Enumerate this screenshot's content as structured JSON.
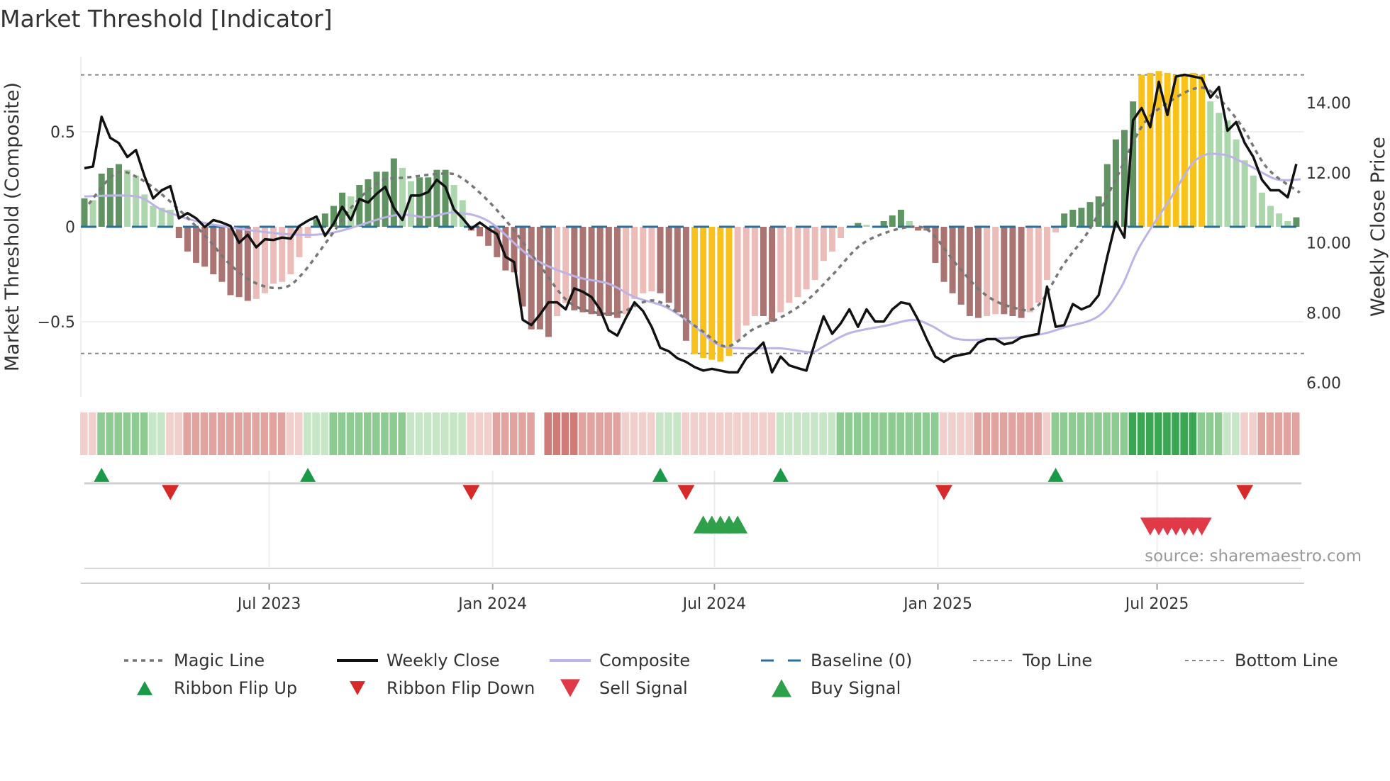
{
  "chart_data": {
    "type": "bar",
    "title": "Market Threshold [Indicator]",
    "ylabel": "Market Threshold (Composite)",
    "y2label": "Weekly Close Price",
    "source": "source: sharemaestro.com",
    "ylim": [
      -0.9,
      0.9
    ],
    "y2lim": [
      5.5,
      15.5
    ],
    "yticks": [
      {
        "v": 0.5,
        "label": "0.5"
      },
      {
        "v": 0,
        "label": "0"
      },
      {
        "v": -0.5,
        "label": "−0.5"
      }
    ],
    "y2ticks": [
      {
        "v": 14,
        "label": "14.00"
      },
      {
        "v": 12,
        "label": "12.00"
      },
      {
        "v": 10,
        "label": "10.00"
      },
      {
        "v": 8,
        "label": "8.00"
      },
      {
        "v": 6,
        "label": "6.00"
      }
    ],
    "xticks": [
      {
        "week": 21.5,
        "label": "Jul 2023"
      },
      {
        "week": 47.5,
        "label": "Jan 2024"
      },
      {
        "week": 73.3,
        "label": "Jul 2024"
      },
      {
        "week": 99.3,
        "label": "Jan 2025"
      },
      {
        "week": 124.8,
        "label": "Jul 2025"
      }
    ],
    "x_unit": "weeks since start (early Feb 2023)",
    "top_line": 0.8,
    "bottom_line": -0.667,
    "baseline": 0,
    "colors": {
      "pos_rising": "#5f9462",
      "pos_falling": "#acd6ab",
      "neg_falling": "#a97472",
      "neg_rising": "#ebbcb8",
      "extreme": "#f8c21a",
      "close": "#111111",
      "composite": "#bcb4e6",
      "magic": "#777777",
      "baseline": "#2a6f9b",
      "threshold": "#888888",
      "flip_up": "#1a9a48",
      "flip_down": "#d62a2a",
      "buy": "#2fa04a",
      "sell": "#e03a48"
    },
    "histogram": [
      0.15,
      0.14,
      0.28,
      0.31,
      0.33,
      0.3,
      0.27,
      0.17,
      0.11,
      0.1,
      0.09,
      -0.06,
      -0.13,
      -0.19,
      -0.21,
      -0.25,
      -0.29,
      -0.36,
      -0.37,
      -0.39,
      -0.38,
      -0.35,
      -0.3,
      -0.29,
      -0.25,
      -0.16,
      -0.06,
      0.04,
      0.07,
      0.11,
      0.18,
      0.16,
      0.22,
      0.25,
      0.29,
      0.29,
      0.36,
      0.31,
      0.24,
      0.26,
      0.26,
      0.3,
      0.3,
      0.22,
      0.14,
      -0.02,
      -0.05,
      -0.1,
      -0.16,
      -0.23,
      -0.24,
      -0.42,
      -0.54,
      -0.54,
      -0.58,
      -0.47,
      -0.4,
      -0.44,
      -0.45,
      -0.46,
      -0.47,
      -0.47,
      -0.48,
      -0.46,
      -0.38,
      -0.35,
      -0.34,
      -0.35,
      -0.4,
      -0.45,
      -0.6,
      -0.67,
      -0.69,
      -0.7,
      -0.71,
      -0.68,
      -0.6,
      -0.52,
      -0.47,
      -0.47,
      -0.5,
      -0.45,
      -0.4,
      -0.37,
      -0.33,
      -0.28,
      -0.18,
      -0.13,
      -0.06,
      0.0,
      0.02,
      0.01,
      0.0,
      0.03,
      0.06,
      0.09,
      0.03,
      -0.02,
      -0.02,
      -0.19,
      -0.29,
      -0.35,
      -0.41,
      -0.47,
      -0.48,
      -0.47,
      -0.46,
      -0.46,
      -0.47,
      -0.48,
      -0.45,
      -0.4,
      -0.28,
      -0.03,
      0.07,
      0.09,
      0.1,
      0.13,
      0.16,
      0.33,
      0.46,
      0.51,
      0.66,
      0.8,
      0.81,
      0.82,
      0.81,
      0.8,
      0.8,
      0.81,
      0.8,
      0.66,
      0.6,
      0.56,
      0.46,
      0.35,
      0.27,
      0.18,
      0.11,
      0.07,
      0.03,
      0.05
    ],
    "weekly_close": [
      12.13,
      12.18,
      13.6,
      13.0,
      12.85,
      12.45,
      12.65,
      11.9,
      11.27,
      11.5,
      11.62,
      10.7,
      10.85,
      10.7,
      10.45,
      10.65,
      10.58,
      10.48,
      10.0,
      10.23,
      9.87,
      10.1,
      10.08,
      10.15,
      10.12,
      10.48,
      10.63,
      10.75,
      10.2,
      10.55,
      11.03,
      10.65,
      11.25,
      11.15,
      11.4,
      11.6,
      11.0,
      10.65,
      11.35,
      11.35,
      11.45,
      11.8,
      11.6,
      10.95,
      10.7,
      10.4,
      10.58,
      10.4,
      10.25,
      9.6,
      9.45,
      7.8,
      7.65,
      7.95,
      8.3,
      8.3,
      8.1,
      8.7,
      8.6,
      8.45,
      8.1,
      7.5,
      7.35,
      7.85,
      8.3,
      8.05,
      7.6,
      7.0,
      6.9,
      6.7,
      6.6,
      6.45,
      6.35,
      6.4,
      6.35,
      6.3,
      6.3,
      6.7,
      6.9,
      7.15,
      6.3,
      6.75,
      6.5,
      6.42,
      6.35,
      7.15,
      7.9,
      7.4,
      7.7,
      8.1,
      7.6,
      8.1,
      7.75,
      7.75,
      8.1,
      8.3,
      8.25,
      7.8,
      7.25,
      6.75,
      6.6,
      6.75,
      6.8,
      6.85,
      7.15,
      7.25,
      7.25,
      7.1,
      7.15,
      7.3,
      7.35,
      7.4,
      8.75,
      7.6,
      7.65,
      8.25,
      8.1,
      8.2,
      8.5,
      9.6,
      10.6,
      10.15,
      13.5,
      13.85,
      13.3,
      14.6,
      13.65,
      14.75,
      14.8,
      14.75,
      14.7,
      14.15,
      14.45,
      13.2,
      13.45,
      12.85,
      12.45,
      11.8,
      11.5,
      11.5,
      11.3,
      12.25
    ],
    "composite": [
      [
        0,
        0.16
      ],
      [
        6,
        0.16
      ],
      [
        9,
        0.09
      ],
      [
        13,
        0.03
      ],
      [
        18,
        -0.01
      ],
      [
        24,
        -0.04
      ],
      [
        29,
        -0.03
      ],
      [
        36,
        0.06
      ],
      [
        40,
        0.05
      ],
      [
        43,
        0.075
      ],
      [
        47,
        0.03
      ],
      [
        52,
        -0.16
      ],
      [
        57,
        -0.26
      ],
      [
        61,
        -0.3
      ],
      [
        64,
        -0.37
      ],
      [
        67.5,
        -0.42
      ],
      [
        70.6,
        -0.51
      ],
      [
        73.7,
        -0.62
      ],
      [
        76.8,
        -0.64
      ],
      [
        81,
        -0.64
      ],
      [
        84.5,
        -0.66
      ],
      [
        86,
        -0.63
      ],
      [
        89,
        -0.56
      ],
      [
        93.3,
        -0.52
      ],
      [
        96.4,
        -0.49
      ],
      [
        98.5,
        -0.52
      ],
      [
        101.5,
        -0.59
      ],
      [
        105.7,
        -0.59
      ],
      [
        110.8,
        -0.57
      ],
      [
        114,
        -0.53
      ],
      [
        118,
        -0.47
      ],
      [
        120.6,
        -0.32
      ],
      [
        122.7,
        -0.11
      ],
      [
        126.3,
        0.145
      ],
      [
        129.4,
        0.355
      ],
      [
        132.5,
        0.38
      ],
      [
        135.6,
        0.32
      ],
      [
        138.7,
        0.25
      ],
      [
        141.5,
        0.25
      ]
    ],
    "magic_line": [
      [
        0.5,
        0.12
      ],
      [
        3.6,
        0.28
      ],
      [
        6.2,
        0.26
      ],
      [
        9.8,
        0.14
      ],
      [
        13.9,
        -0.04
      ],
      [
        17,
        -0.2
      ],
      [
        20.1,
        -0.3
      ],
      [
        23.2,
        -0.32
      ],
      [
        25.3,
        -0.25
      ],
      [
        28.4,
        -0.065
      ],
      [
        31.4,
        0.12
      ],
      [
        34.5,
        0.24
      ],
      [
        37.6,
        0.26
      ],
      [
        41.8,
        0.28
      ],
      [
        43.8,
        0.26
      ],
      [
        46.9,
        0.14
      ],
      [
        50,
        -0.02
      ],
      [
        53.1,
        -0.21
      ],
      [
        56.2,
        -0.39
      ],
      [
        59.3,
        -0.45
      ],
      [
        62.4,
        -0.45
      ],
      [
        66.5,
        -0.39
      ],
      [
        71.6,
        -0.54
      ],
      [
        74.7,
        -0.63
      ],
      [
        77.8,
        -0.54
      ],
      [
        80.9,
        -0.48
      ],
      [
        84,
        -0.39
      ],
      [
        87.1,
        -0.25
      ],
      [
        90.2,
        -0.1
      ],
      [
        93.3,
        -0.03
      ],
      [
        96.4,
        0.0
      ],
      [
        98.5,
        -0.03
      ],
      [
        101.5,
        -0.2
      ],
      [
        104.6,
        -0.35
      ],
      [
        107.7,
        -0.42
      ],
      [
        110.8,
        -0.42
      ],
      [
        113.9,
        -0.2
      ],
      [
        117,
        -0.01
      ],
      [
        120.1,
        0.26
      ],
      [
        123.2,
        0.54
      ],
      [
        126.3,
        0.66
      ],
      [
        129.4,
        0.73
      ],
      [
        131.4,
        0.7
      ],
      [
        134.5,
        0.54
      ],
      [
        137.6,
        0.31
      ],
      [
        141.4,
        0.18
      ]
    ],
    "ribbon": [
      -1,
      -1,
      2,
      2,
      2,
      2,
      2,
      2,
      1,
      1,
      -1,
      -1,
      -2,
      -2,
      -2,
      -2,
      -2,
      -2,
      -2,
      -2,
      -2,
      -2,
      -2,
      -2,
      -1,
      -1,
      1,
      1,
      1,
      2,
      2,
      2,
      2,
      2,
      2,
      2,
      2,
      2,
      1,
      1,
      1,
      1,
      1,
      1,
      1,
      -1,
      -1,
      -1,
      -2,
      -2,
      -2,
      -2,
      -2,
      0,
      -3,
      -3,
      -3,
      -3,
      -2,
      -2,
      -2,
      -2,
      -2,
      -1,
      -1,
      -1,
      -1,
      1,
      1,
      1,
      -1,
      -1,
      -1,
      -1,
      -1,
      -1,
      -1,
      -1,
      -1,
      -1,
      -1,
      1,
      1,
      1,
      1,
      1,
      1,
      1,
      2,
      2,
      2,
      2,
      2,
      2,
      2,
      2,
      2,
      2,
      2,
      2,
      -1,
      -1,
      -1,
      -1,
      -2,
      -2,
      -2,
      -2,
      -2,
      -2,
      -2,
      -2,
      -1,
      2,
      2,
      2,
      2,
      2,
      2,
      2,
      2,
      2,
      3,
      3,
      3,
      3,
      3,
      3,
      3,
      3,
      2,
      2,
      2,
      1,
      1,
      -1,
      -1,
      -2,
      -2,
      -2,
      -2,
      -2
    ],
    "ribbon_flip_up": [
      2,
      26,
      67,
      81,
      113
    ],
    "ribbon_flip_down": [
      10,
      45,
      70,
      100,
      135
    ],
    "buy_signals": [
      72,
      73,
      74,
      75,
      76
    ],
    "sell_signals": [
      124,
      125,
      126,
      127,
      128,
      129,
      130
    ],
    "legend": {
      "placement": "bottom",
      "items": [
        {
          "key": "magic",
          "label": "Magic Line"
        },
        {
          "key": "close",
          "label": "Weekly Close"
        },
        {
          "key": "composite",
          "label": "Composite"
        },
        {
          "key": "baseline",
          "label": "Baseline (0)"
        },
        {
          "key": "top",
          "label": "Top Line"
        },
        {
          "key": "bottom",
          "label": "Bottom Line"
        },
        {
          "key": "flip_up",
          "label": "Ribbon Flip Up"
        },
        {
          "key": "flip_down",
          "label": "Ribbon Flip Down"
        },
        {
          "key": "sell",
          "label": "Sell Signal"
        },
        {
          "key": "buy",
          "label": "Buy Signal"
        }
      ]
    }
  }
}
